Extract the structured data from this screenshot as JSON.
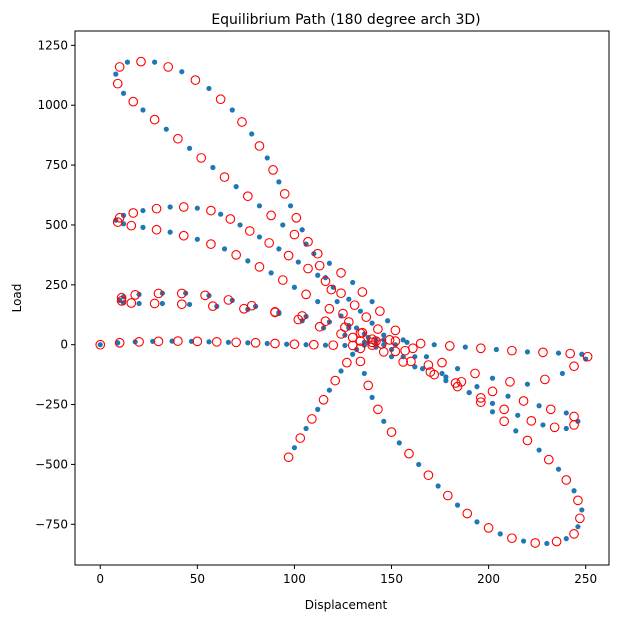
{
  "chart_data": {
    "type": "scatter",
    "title": "Equilibrium Path (180 degree arch 3D)",
    "xlabel": "Displacement",
    "ylabel": "Load",
    "xlim": [
      -13,
      262
    ],
    "ylim": [
      -920,
      1310
    ],
    "xticks": [
      0,
      50,
      100,
      150,
      200,
      250
    ],
    "yticks": [
      -750,
      -500,
      -250,
      0,
      250,
      500,
      750,
      1000,
      1250
    ],
    "grid": false,
    "legend": "none",
    "colors": {
      "filled": "#1f77b4",
      "open_edge": "#ff0000",
      "axes": "#000000"
    },
    "series": [
      {
        "marker": "filled-dot",
        "color": "#1f77b4",
        "points": [
          [
            0,
            0
          ],
          [
            9,
            8
          ],
          [
            18,
            12
          ],
          [
            27,
            14
          ],
          [
            37,
            15
          ],
          [
            47,
            14
          ],
          [
            56,
            12
          ],
          [
            66,
            10
          ],
          [
            76,
            8
          ],
          [
            86,
            5
          ],
          [
            96,
            2
          ],
          [
            106,
            0
          ],
          [
            116,
            -2
          ],
          [
            126,
            -3
          ],
          [
            136,
            -2
          ],
          [
            142,
            -1
          ],
          [
            136,
            10
          ],
          [
            126,
            40
          ],
          [
            115,
            70
          ],
          [
            104,
            100
          ],
          [
            92,
            130
          ],
          [
            80,
            160
          ],
          [
            68,
            185
          ],
          [
            56,
            205
          ],
          [
            44,
            215
          ],
          [
            32,
            215
          ],
          [
            20,
            210
          ],
          [
            12,
            200
          ],
          [
            10,
            185
          ],
          [
            12,
            175
          ],
          [
            20,
            172
          ],
          [
            32,
            172
          ],
          [
            46,
            168
          ],
          [
            60,
            160
          ],
          [
            76,
            148
          ],
          [
            92,
            135
          ],
          [
            106,
            118
          ],
          [
            118,
            95
          ],
          [
            128,
            70
          ],
          [
            136,
            45
          ],
          [
            142,
            20
          ],
          [
            146,
            0
          ],
          [
            150,
            -20
          ],
          [
            156,
            -50
          ],
          [
            166,
            -100
          ],
          [
            178,
            -150
          ],
          [
            190,
            -200
          ],
          [
            202,
            -245
          ],
          [
            215,
            -295
          ],
          [
            228,
            -335
          ],
          [
            240,
            -350
          ],
          [
            246,
            -320
          ],
          [
            240,
            -285
          ],
          [
            226,
            -255
          ],
          [
            210,
            -215
          ],
          [
            194,
            -175
          ],
          [
            178,
            -135
          ],
          [
            162,
            -92
          ],
          [
            150,
            -50
          ],
          [
            142,
            -10
          ],
          [
            138,
            30
          ],
          [
            132,
            70
          ],
          [
            124,
            120
          ],
          [
            112,
            180
          ],
          [
            100,
            240
          ],
          [
            88,
            300
          ],
          [
            76,
            350
          ],
          [
            64,
            400
          ],
          [
            50,
            440
          ],
          [
            36,
            470
          ],
          [
            22,
            490
          ],
          [
            12,
            505
          ],
          [
            8,
            520
          ],
          [
            12,
            540
          ],
          [
            22,
            560
          ],
          [
            36,
            575
          ],
          [
            50,
            570
          ],
          [
            62,
            545
          ],
          [
            72,
            500
          ],
          [
            82,
            450
          ],
          [
            92,
            400
          ],
          [
            102,
            345
          ],
          [
            112,
            290
          ],
          [
            120,
            240
          ],
          [
            128,
            190
          ],
          [
            134,
            140
          ],
          [
            140,
            90
          ],
          [
            146,
            40
          ],
          [
            152,
            0
          ],
          [
            162,
            -50
          ],
          [
            176,
            -120
          ],
          [
            190,
            -200
          ],
          [
            202,
            -280
          ],
          [
            214,
            -360
          ],
          [
            226,
            -440
          ],
          [
            236,
            -520
          ],
          [
            244,
            -610
          ],
          [
            248,
            -690
          ],
          [
            246,
            -760
          ],
          [
            240,
            -810
          ],
          [
            230,
            -830
          ],
          [
            218,
            -820
          ],
          [
            206,
            -790
          ],
          [
            194,
            -740
          ],
          [
            184,
            -670
          ],
          [
            174,
            -590
          ],
          [
            164,
            -500
          ],
          [
            154,
            -410
          ],
          [
            146,
            -320
          ],
          [
            140,
            -220
          ],
          [
            136,
            -120
          ],
          [
            132,
            -20
          ],
          [
            128,
            80
          ],
          [
            122,
            180
          ],
          [
            116,
            280
          ],
          [
            110,
            380
          ],
          [
            104,
            480
          ],
          [
            98,
            580
          ],
          [
            92,
            680
          ],
          [
            86,
            780
          ],
          [
            78,
            880
          ],
          [
            68,
            980
          ],
          [
            56,
            1070
          ],
          [
            42,
            1140
          ],
          [
            28,
            1180
          ],
          [
            14,
            1180
          ],
          [
            8,
            1130
          ],
          [
            12,
            1050
          ],
          [
            22,
            980
          ],
          [
            34,
            900
          ],
          [
            46,
            820
          ],
          [
            58,
            740
          ],
          [
            70,
            660
          ],
          [
            82,
            580
          ],
          [
            94,
            500
          ],
          [
            106,
            420
          ],
          [
            118,
            340
          ],
          [
            130,
            260
          ],
          [
            140,
            180
          ],
          [
            148,
            100
          ],
          [
            156,
            20
          ],
          [
            168,
            -50
          ],
          [
            184,
            -100
          ],
          [
            202,
            -140
          ],
          [
            220,
            -165
          ],
          [
            238,
            -120
          ],
          [
            250,
            -60
          ],
          [
            248,
            -40
          ],
          [
            236,
            -35
          ],
          [
            220,
            -30
          ],
          [
            204,
            -20
          ],
          [
            188,
            -10
          ],
          [
            172,
            0
          ],
          [
            158,
            10
          ],
          [
            146,
            20
          ],
          [
            138,
            10
          ],
          [
            130,
            -40
          ],
          [
            124,
            -110
          ],
          [
            118,
            -190
          ],
          [
            112,
            -270
          ],
          [
            106,
            -350
          ],
          [
            100,
            -430
          ]
        ]
      },
      {
        "marker": "open-circle",
        "color": "#ff0000",
        "points": [
          [
            0,
            0
          ],
          [
            10,
            8
          ],
          [
            20,
            12
          ],
          [
            30,
            14
          ],
          [
            40,
            15
          ],
          [
            50,
            14
          ],
          [
            60,
            12
          ],
          [
            70,
            10
          ],
          [
            80,
            8
          ],
          [
            90,
            5
          ],
          [
            100,
            2
          ],
          [
            110,
            0
          ],
          [
            120,
            -2
          ],
          [
            130,
            -3
          ],
          [
            140,
            -2
          ],
          [
            134,
            15
          ],
          [
            124,
            45
          ],
          [
            113,
            75
          ],
          [
            102,
            105
          ],
          [
            90,
            135
          ],
          [
            78,
            163
          ],
          [
            66,
            187
          ],
          [
            54,
            206
          ],
          [
            42,
            214
          ],
          [
            30,
            214
          ],
          [
            18,
            208
          ],
          [
            11,
            196
          ],
          [
            11,
            183
          ],
          [
            16,
            174
          ],
          [
            28,
            172
          ],
          [
            42,
            169
          ],
          [
            58,
            161
          ],
          [
            74,
            150
          ],
          [
            90,
            137
          ],
          [
            104,
            120
          ],
          [
            116,
            98
          ],
          [
            126,
            73
          ],
          [
            134,
            48
          ],
          [
            140,
            23
          ],
          [
            145,
            3
          ],
          [
            152,
            -28
          ],
          [
            160,
            -70
          ],
          [
            172,
            -125
          ],
          [
            184,
            -175
          ],
          [
            196,
            -222
          ],
          [
            208,
            -270
          ],
          [
            222,
            -318
          ],
          [
            234,
            -345
          ],
          [
            244,
            -335
          ],
          [
            244,
            -300
          ],
          [
            232,
            -270
          ],
          [
            218,
            -235
          ],
          [
            202,
            -195
          ],
          [
            186,
            -155
          ],
          [
            170,
            -114
          ],
          [
            156,
            -72
          ],
          [
            146,
            -30
          ],
          [
            140,
            10
          ],
          [
            135,
            50
          ],
          [
            128,
            95
          ],
          [
            118,
            150
          ],
          [
            106,
            210
          ],
          [
            94,
            270
          ],
          [
            82,
            325
          ],
          [
            70,
            375
          ],
          [
            57,
            420
          ],
          [
            43,
            455
          ],
          [
            29,
            480
          ],
          [
            16,
            497
          ],
          [
            9,
            512
          ],
          [
            10,
            530
          ],
          [
            17,
            550
          ],
          [
            29,
            568
          ],
          [
            43,
            575
          ],
          [
            57,
            560
          ],
          [
            67,
            525
          ],
          [
            77,
            475
          ],
          [
            87,
            425
          ],
          [
            97,
            372
          ],
          [
            107,
            318
          ],
          [
            116,
            265
          ],
          [
            124,
            215
          ],
          [
            131,
            165
          ],
          [
            137,
            115
          ],
          [
            143,
            65
          ],
          [
            149,
            20
          ],
          [
            157,
            -25
          ],
          [
            169,
            -85
          ],
          [
            183,
            -160
          ],
          [
            196,
            -240
          ],
          [
            208,
            -320
          ],
          [
            220,
            -400
          ],
          [
            231,
            -480
          ],
          [
            240,
            -565
          ],
          [
            246,
            -650
          ],
          [
            247,
            -725
          ],
          [
            244,
            -790
          ],
          [
            235,
            -822
          ],
          [
            224,
            -828
          ],
          [
            212,
            -808
          ],
          [
            200,
            -765
          ],
          [
            189,
            -705
          ],
          [
            179,
            -630
          ],
          [
            169,
            -545
          ],
          [
            159,
            -455
          ],
          [
            150,
            -365
          ],
          [
            143,
            -270
          ],
          [
            138,
            -170
          ],
          [
            134,
            -70
          ],
          [
            130,
            30
          ],
          [
            125,
            130
          ],
          [
            119,
            230
          ],
          [
            113,
            330
          ],
          [
            107,
            430
          ],
          [
            101,
            530
          ],
          [
            95,
            630
          ],
          [
            89,
            730
          ],
          [
            82,
            830
          ],
          [
            73,
            930
          ],
          [
            62,
            1025
          ],
          [
            49,
            1105
          ],
          [
            35,
            1160
          ],
          [
            21,
            1182
          ],
          [
            10,
            1160
          ],
          [
            9,
            1090
          ],
          [
            17,
            1015
          ],
          [
            28,
            940
          ],
          [
            40,
            860
          ],
          [
            52,
            780
          ],
          [
            64,
            700
          ],
          [
            76,
            620
          ],
          [
            88,
            540
          ],
          [
            100,
            460
          ],
          [
            112,
            380
          ],
          [
            124,
            300
          ],
          [
            135,
            220
          ],
          [
            144,
            140
          ],
          [
            152,
            60
          ],
          [
            161,
            -15
          ],
          [
            176,
            -75
          ],
          [
            193,
            -120
          ],
          [
            211,
            -155
          ],
          [
            229,
            -145
          ],
          [
            244,
            -90
          ],
          [
            251,
            -50
          ],
          [
            242,
            -37
          ],
          [
            228,
            -32
          ],
          [
            212,
            -25
          ],
          [
            196,
            -15
          ],
          [
            180,
            -5
          ],
          [
            165,
            5
          ],
          [
            152,
            15
          ],
          [
            142,
            15
          ],
          [
            134,
            -15
          ],
          [
            127,
            -75
          ],
          [
            121,
            -150
          ],
          [
            115,
            -230
          ],
          [
            109,
            -310
          ],
          [
            103,
            -390
          ],
          [
            97,
            -470
          ]
        ]
      }
    ]
  }
}
